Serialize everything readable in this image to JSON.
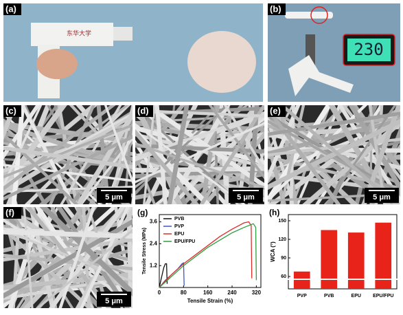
{
  "panels": [
    {
      "label": "(a)"
    },
    {
      "label": "(b)",
      "display": "230"
    },
    {
      "label": "(c)",
      "scale_bar": "5 μm"
    },
    {
      "label": "(d)",
      "scale_bar": "5 μm"
    },
    {
      "label": "(e)",
      "scale_bar": "5 μm"
    },
    {
      "label": "(f)",
      "scale_bar": "5 μm"
    },
    {
      "label": "(g)"
    },
    {
      "label": "(h)"
    }
  ],
  "logo_text": "东华大学",
  "chart_data": [
    {
      "type": "line",
      "xlabel": "Tensile Strain (%)",
      "ylabel": "Tensile Stress (MPa)",
      "xlim": [
        0,
        335
      ],
      "xticks": [
        0,
        80,
        160,
        240,
        320
      ],
      "ylim": [
        0,
        4
      ],
      "yticks": [
        1.2,
        2.4,
        3.6
      ],
      "series": [
        {
          "name": "PVB",
          "color": "#111111",
          "x": [
            0,
            8,
            15,
            20,
            24,
            26
          ],
          "values": [
            0,
            0.6,
            1.1,
            1.3,
            1.3,
            0.2
          ]
        },
        {
          "name": "PVP",
          "color": "#3a55c8",
          "x": [
            0,
            20,
            40,
            60,
            75,
            80,
            82
          ],
          "values": [
            0,
            0.4,
            0.7,
            1.0,
            1.3,
            1.35,
            0.1
          ]
        },
        {
          "name": "EPU",
          "color": "#e02a2a",
          "x": [
            0,
            40,
            80,
            120,
            160,
            200,
            240,
            280,
            295,
            303,
            305
          ],
          "values": [
            0,
            0.7,
            1.3,
            1.8,
            2.3,
            2.8,
            3.2,
            3.55,
            3.6,
            3.4,
            0.5
          ]
        },
        {
          "name": "EPU/FPU",
          "color": "#2e9e3e",
          "x": [
            0,
            40,
            80,
            120,
            160,
            200,
            240,
            280,
            310,
            318,
            320
          ],
          "values": [
            0,
            0.6,
            1.2,
            1.7,
            2.2,
            2.6,
            3.0,
            3.3,
            3.5,
            3.3,
            0.4
          ]
        }
      ]
    },
    {
      "type": "bar",
      "ylabel": "WCA (°)",
      "categories": [
        "PVP",
        "PVB",
        "EPU",
        "EPU/FPU"
      ],
      "values": [
        68,
        135,
        131,
        147
      ],
      "color": "#e8231a",
      "ylim": [
        40,
        160
      ],
      "yticks": [
        60,
        90,
        120,
        150
      ]
    }
  ]
}
